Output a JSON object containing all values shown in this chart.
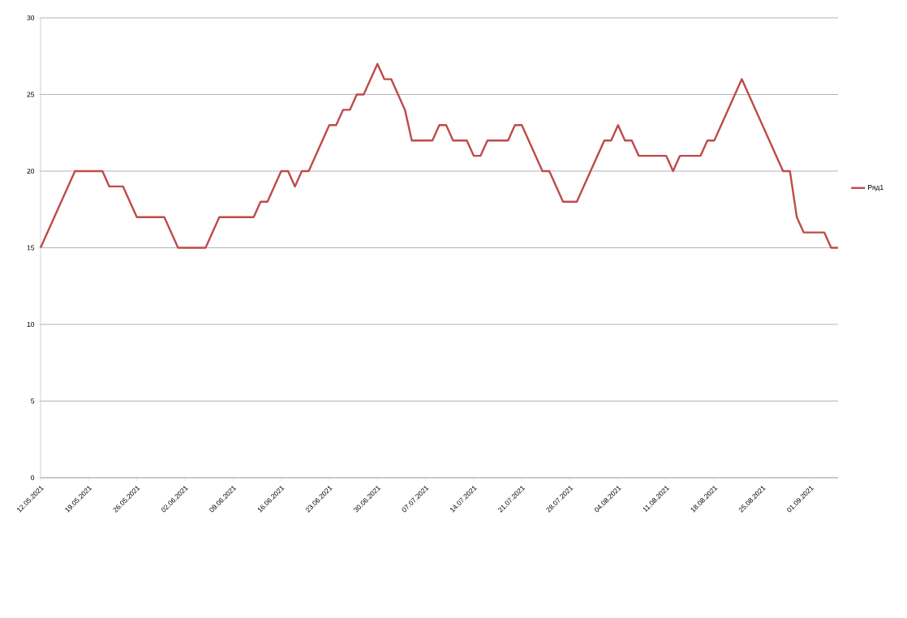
{
  "chart_data": {
    "type": "line",
    "x": [
      "2021-05-12",
      "2021-05-17",
      "2021-05-21",
      "2021-05-22",
      "2021-05-24",
      "2021-05-26",
      "2021-05-30",
      "2021-06-01",
      "2021-06-05",
      "2021-06-07",
      "2021-06-12",
      "2021-06-13",
      "2021-06-14",
      "2021-06-16",
      "2021-06-17",
      "2021-06-18",
      "2021-06-19",
      "2021-06-20",
      "2021-06-23",
      "2021-06-24",
      "2021-06-25",
      "2021-06-26",
      "2021-06-27",
      "2021-06-28",
      "2021-06-30",
      "2021-07-01",
      "2021-07-02",
      "2021-07-04",
      "2021-07-05",
      "2021-07-08",
      "2021-07-09",
      "2021-07-10",
      "2021-07-11",
      "2021-07-13",
      "2021-07-14",
      "2021-07-15",
      "2021-07-16",
      "2021-07-19",
      "2021-07-20",
      "2021-07-21",
      "2021-07-24",
      "2021-07-25",
      "2021-07-27",
      "2021-07-29",
      "2021-08-02",
      "2021-08-03",
      "2021-08-04",
      "2021-08-05",
      "2021-08-06",
      "2021-08-07",
      "2021-08-11",
      "2021-08-12",
      "2021-08-13",
      "2021-08-16",
      "2021-08-17",
      "2021-08-18",
      "2021-08-22",
      "2021-08-28",
      "2021-08-29",
      "2021-08-30",
      "2021-08-31",
      "2021-09-03",
      "2021-09-04",
      "2021-09-05"
    ],
    "series": [
      {
        "name": "Ряд1",
        "color": "#be4b48",
        "values": [
          15,
          20,
          20,
          19,
          19,
          17,
          17,
          15,
          15,
          17,
          17,
          18,
          18,
          20,
          20,
          19,
          20,
          20,
          23,
          23,
          24,
          24,
          25,
          25,
          27,
          26,
          26,
          24,
          22,
          22,
          23,
          23,
          22,
          22,
          21,
          21,
          22,
          22,
          23,
          23,
          20,
          20,
          18,
          18,
          22,
          22,
          23,
          22,
          22,
          21,
          21,
          20,
          21,
          21,
          22,
          22,
          26,
          20,
          20,
          17,
          16,
          16,
          15,
          15
        ]
      }
    ],
    "xlim": [
      "2021-05-12",
      "2021-09-05"
    ],
    "xticks": [
      {
        "value": "2021-05-12",
        "label": "12.05.2021"
      },
      {
        "value": "2021-05-19",
        "label": "19.05.2021"
      },
      {
        "value": "2021-05-26",
        "label": "26.05.2021"
      },
      {
        "value": "2021-06-02",
        "label": "02.06.2021"
      },
      {
        "value": "2021-06-09",
        "label": "09.06.2021"
      },
      {
        "value": "2021-06-16",
        "label": "16.06.2021"
      },
      {
        "value": "2021-06-23",
        "label": "23.06.2021"
      },
      {
        "value": "2021-06-30",
        "label": "30.06.2021"
      },
      {
        "value": "2021-07-07",
        "label": "07.07.2021"
      },
      {
        "value": "2021-07-14",
        "label": "14.07.2021"
      },
      {
        "value": "2021-07-21",
        "label": "21.07.2021"
      },
      {
        "value": "2021-07-28",
        "label": "28.07.2021"
      },
      {
        "value": "2021-08-04",
        "label": "04.08.2021"
      },
      {
        "value": "2021-08-11",
        "label": "11.08.2021"
      },
      {
        "value": "2021-08-18",
        "label": "18.08.2021"
      },
      {
        "value": "2021-08-25",
        "label": "25.08.2021"
      },
      {
        "value": "2021-09-01",
        "label": "01.09.2021"
      }
    ],
    "ylim": [
      0,
      30
    ],
    "yticks": [
      0,
      5,
      10,
      15,
      20,
      25,
      30
    ],
    "grid": "y",
    "legend": "right",
    "marker": "none",
    "line_style": "solid"
  }
}
